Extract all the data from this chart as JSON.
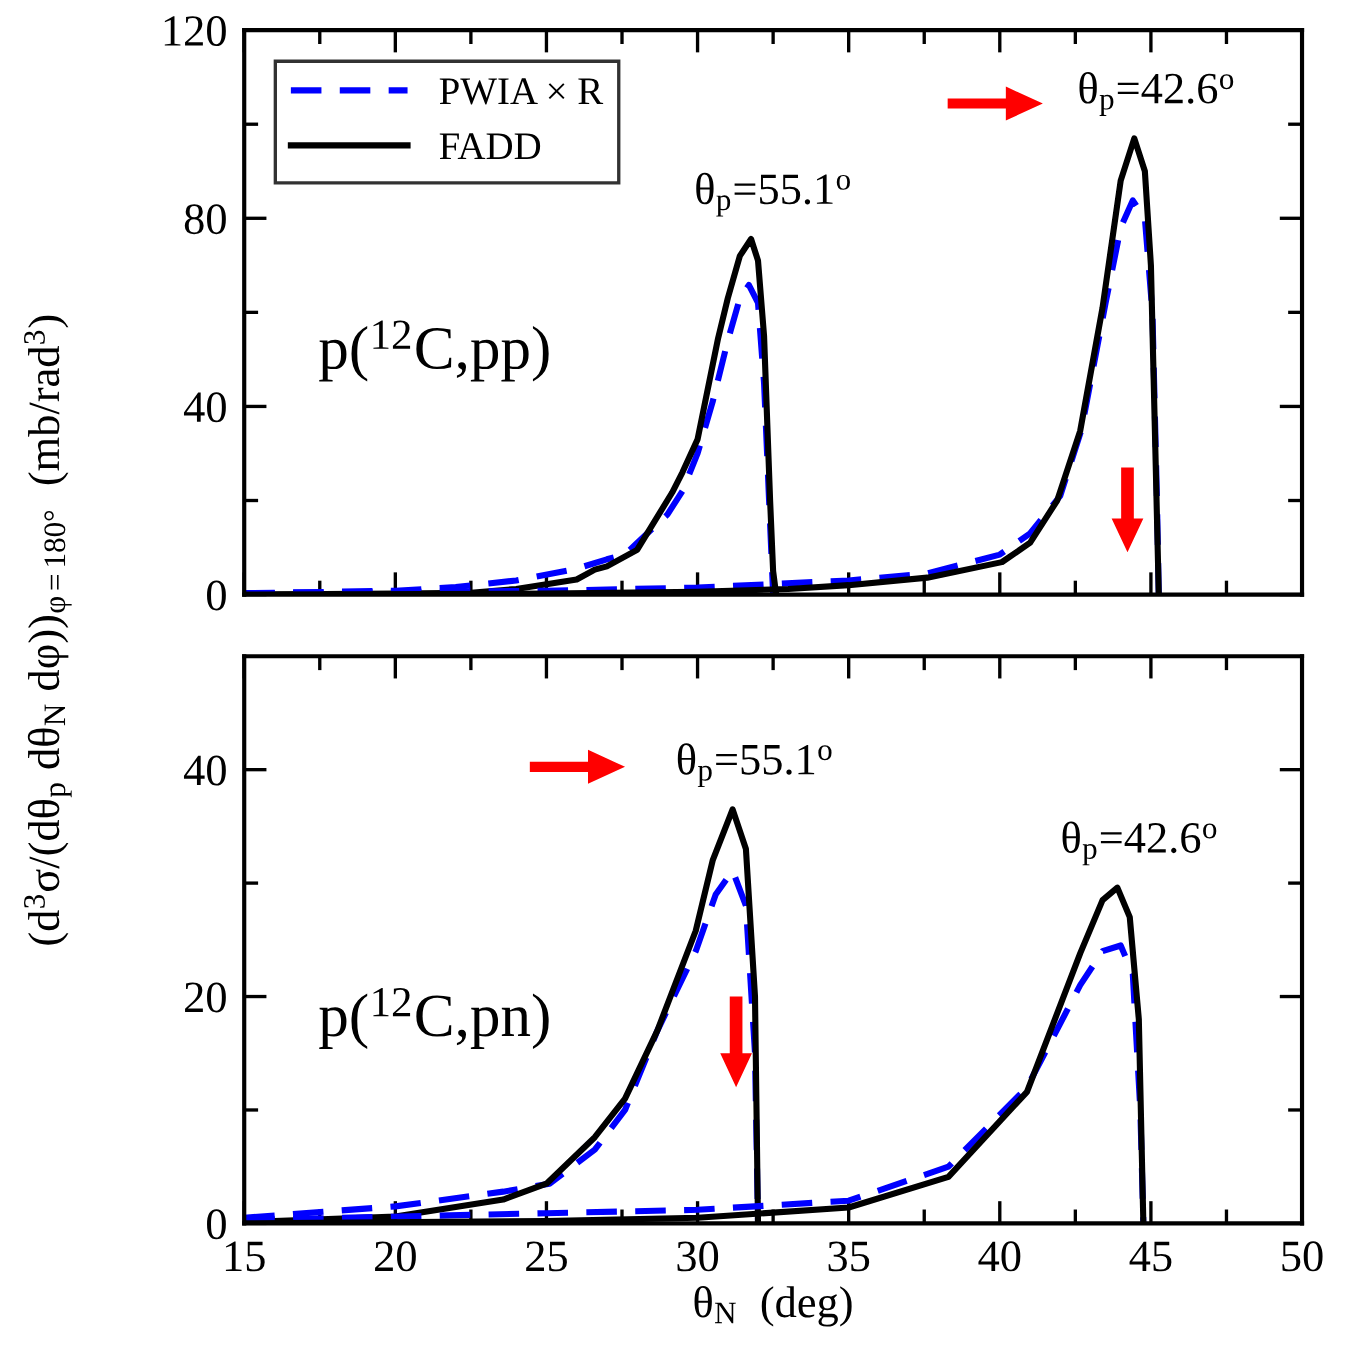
{
  "chart_data": [
    {
      "type": "line",
      "ylabel": "(d$^{3}$σ/(dθ$_{p}$ dθ$_{N}$ dφ))$_{φ=180°}$  (mb/rad$^{3}$)",
      "xlim": [
        15,
        50
      ],
      "ylim": [
        0,
        120
      ],
      "xticks": [
        15,
        {
          "value": 17.5,
          "label": null
        },
        20,
        {
          "value": 22.5,
          "label": null
        },
        25,
        {
          "value": 27.5,
          "label": null
        },
        30,
        {
          "value": 32.5,
          "label": null
        },
        35,
        {
          "value": 37.5,
          "label": null
        },
        40,
        {
          "value": 42.5,
          "label": null
        },
        45,
        {
          "value": 47.5,
          "label": null
        },
        50
      ],
      "yticks": [
        0,
        {
          "value": 20,
          "label": null
        },
        40,
        {
          "value": 60,
          "label": null
        },
        80,
        {
          "value": 100,
          "label": null
        },
        120
      ],
      "tick_labels": "y",
      "legend": "top left",
      "grid": false,
      "annotations": [
        "p($^{12}$C,pp)",
        {
          "text": "θ$_{p}$=55.1$^{o}$",
          "x": 31.77,
          "y": 75.6
        },
        {
          "text": "θ$_{p}$=42.6$^{o}$",
          "x": 44.45,
          "y": 97
        }
      ],
      "series": [
        {
          "name": "PWIA × R",
          "color": "#0000ff",
          "line_style": "dashed",
          "x": [
            15,
            20,
            22,
            24,
            26,
            27,
            27.6,
            28,
            29,
            29.5,
            30,
            30.5,
            31,
            31.4,
            31.7,
            32,
            32.2,
            32.4,
            32.5
          ],
          "values": [
            0.3,
            0.8,
            1.6,
            3,
            5.5,
            7.5,
            8.5,
            11,
            17,
            22,
            30,
            41,
            54,
            63,
            65.8,
            62,
            45,
            15,
            0
          ]
        },
        {
          "name": "FADD",
          "color": "#000000",
          "line_style": "solid",
          "x": [
            15,
            20,
            22.5,
            24,
            26,
            26.6,
            27,
            28,
            29.16,
            29.5,
            30,
            30.68,
            31,
            31.4,
            31.77,
            32,
            32.2,
            32.4,
            32.5,
            32.6
          ],
          "values": [
            0,
            0.2,
            0.4,
            1.2,
            3.2,
            5.3,
            6,
            9.5,
            21.7,
            26,
            33,
            54.5,
            63,
            72,
            75.6,
            71,
            55,
            20,
            5,
            0
          ]
        },
        {
          "color": "#0000ff",
          "line_style": "dashed",
          "x": [
            15,
            25,
            30,
            35,
            37.6,
            40,
            41,
            42,
            42.7,
            43.5,
            44,
            44.4,
            44.8,
            45.05,
            45.2,
            45.26
          ],
          "values": [
            0.3,
            0.8,
            1.5,
            3,
            4.5,
            8.5,
            13,
            21,
            35,
            62,
            78,
            83.8,
            80,
            60,
            20,
            0
          ]
        },
        {
          "color": "#000000",
          "line_style": "solid",
          "x": [
            15,
            25,
            30,
            33,
            35,
            37.6,
            40.07,
            41,
            41.9,
            42.66,
            43.4,
            44,
            44.45,
            44.8,
            45,
            45.15,
            45.26
          ],
          "values": [
            0,
            0.2,
            0.6,
            1.2,
            2,
            3.6,
            6.9,
            11,
            20,
            34.8,
            61,
            88,
            97,
            90,
            70,
            30,
            0
          ]
        }
      ]
    },
    {
      "type": "line",
      "xlabel": "θ$_{N}$  (deg)",
      "xlim": [
        15,
        50
      ],
      "ylim": [
        0,
        50
      ],
      "xticks": [
        15,
        {
          "value": 17.5,
          "label": null
        },
        20,
        {
          "value": 22.5,
          "label": null
        },
        25,
        {
          "value": 27.5,
          "label": null
        },
        30,
        {
          "value": 32.5,
          "label": null
        },
        35,
        {
          "value": 37.5,
          "label": null
        },
        40,
        {
          "value": 42.5,
          "label": null
        },
        45,
        {
          "value": 47.5,
          "label": null
        },
        50
      ],
      "yticks": [
        0,
        {
          "value": 10,
          "label": null
        },
        20,
        {
          "value": 30,
          "label": null
        },
        40
      ],
      "grid": false,
      "annotations": [
        "p($^{12}$C,pn)",
        {
          "text": "θ$_{p}$=55.1$^{o}$",
          "x": 31.16,
          "y": 36.5
        },
        {
          "text": "θ$_{p}$=42.6$^{o}$",
          "x": 43.89,
          "y": 29.6
        }
      ],
      "series": [
        {
          "color": "#0000ff",
          "line_style": "dashed",
          "x": [
            15,
            20,
            23.57,
            25.1,
            26.6,
            27.6,
            28.67,
            29.94,
            30.6,
            31.16,
            31.6,
            31.9,
            32
          ],
          "values": [
            0.5,
            1.5,
            2.8,
            3.5,
            6.5,
            10,
            17,
            24,
            29,
            31.1,
            28,
            15,
            0
          ]
        },
        {
          "color": "#000000",
          "line_style": "solid",
          "x": [
            15,
            20,
            23.57,
            25,
            26.6,
            27.6,
            28.67,
            29.94,
            30.5,
            31.16,
            31.6,
            31.9,
            32
          ],
          "values": [
            0.1,
            0.6,
            2.1,
            3.5,
            7.6,
            11,
            17,
            25.8,
            32,
            36.5,
            33,
            20,
            0
          ]
        },
        {
          "color": "#0000ff",
          "line_style": "dashed",
          "x": [
            15,
            25,
            30,
            35,
            38.3,
            40.9,
            42.66,
            43.4,
            44,
            44.4,
            44.65,
            44.75
          ],
          "values": [
            0.3,
            0.9,
            1.2,
            2,
            5,
            12,
            21,
            24,
            24.5,
            22,
            10,
            0
          ]
        },
        {
          "color": "#000000",
          "line_style": "solid",
          "x": [
            15,
            25,
            30,
            35,
            38.3,
            40.9,
            42.66,
            43.4,
            43.89,
            44.3,
            44.6,
            44.75
          ],
          "values": [
            0,
            0.2,
            0.5,
            1.4,
            4.1,
            11.6,
            23.8,
            28.5,
            29.6,
            27,
            18,
            0
          ]
        }
      ]
    }
  ]
}
